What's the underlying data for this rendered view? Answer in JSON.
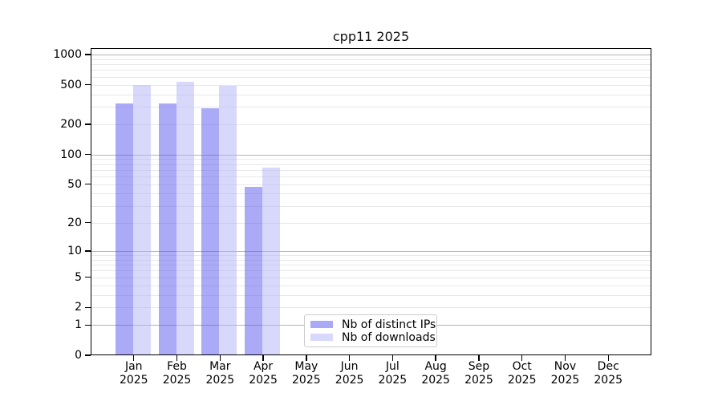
{
  "chart_data": {
    "type": "bar",
    "title": "cpp11 2025",
    "categories": [
      "Jan",
      "Feb",
      "Mar",
      "Apr",
      "May",
      "Jun",
      "Jul",
      "Aug",
      "Sep",
      "Oct",
      "Nov",
      "Dec"
    ],
    "year": "2025",
    "series": [
      {
        "name": "Nb of distinct IPs",
        "values": [
          325,
          325,
          290,
          47,
          null,
          null,
          null,
          null,
          null,
          null,
          null,
          null
        ]
      },
      {
        "name": "Nb of downloads",
        "values": [
          495,
          535,
          485,
          73,
          null,
          null,
          null,
          null,
          null,
          null,
          null,
          null
        ]
      }
    ],
    "y_ticks": [
      0,
      1,
      2,
      5,
      10,
      20,
      50,
      100,
      200,
      500,
      1000
    ],
    "y_scale": "log10(1+y)",
    "ylim": [
      0,
      1160
    ],
    "grid": true,
    "legend_position": "lower center"
  },
  "colors": {
    "ips_fill": "rgba(85,85,240,0.5)",
    "ips_solid": "#a9a9f7",
    "downloads_fill": "rgba(177,177,245,0.5)",
    "downloads_solid": "#d8d8fa",
    "grid_major": "#b3b3b3",
    "grid_minor": "#e8e8e8",
    "spine": "#000000"
  }
}
